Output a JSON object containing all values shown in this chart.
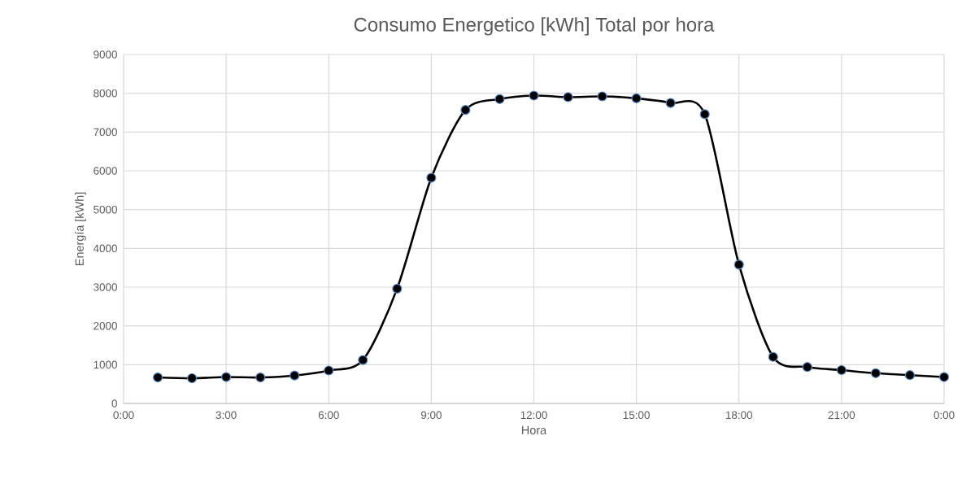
{
  "chart_data": {
    "type": "line",
    "title": "Consumo Energetico [kWh] Total por hora",
    "xlabel": "Hora",
    "ylabel": "Energía [kWh]",
    "x": [
      1,
      2,
      3,
      4,
      5,
      6,
      7,
      8,
      9,
      10,
      11,
      12,
      13,
      14,
      15,
      16,
      17,
      18,
      19,
      20,
      21,
      22,
      23,
      24
    ],
    "series": [
      {
        "color": "#000000",
        "values": [
          670,
          650,
          680,
          670,
          720,
          850,
          1120,
          2960,
          5820,
          7570,
          7850,
          7940,
          7900,
          7920,
          7870,
          7750,
          7460,
          3580,
          1200,
          940,
          860,
          780,
          730,
          680
        ]
      }
    ],
    "xlim": [
      0,
      24
    ],
    "xticks": [
      {
        "value": 0,
        "label": "0:00"
      },
      {
        "value": 3,
        "label": "3:00"
      },
      {
        "value": 6,
        "label": "6:00"
      },
      {
        "value": 9,
        "label": "9:00"
      },
      {
        "value": 12,
        "label": "12:00"
      },
      {
        "value": 15,
        "label": "15:00"
      },
      {
        "value": 18,
        "label": "18:00"
      },
      {
        "value": 21,
        "label": "21:00"
      },
      {
        "value": 24,
        "label": "0:00"
      }
    ],
    "ylim": [
      0,
      9000
    ],
    "yticks": [
      0,
      1000,
      2000,
      3000,
      4000,
      5000,
      6000,
      7000,
      8000,
      9000
    ],
    "grid": true,
    "marker": "circle",
    "line_style": "solid"
  }
}
